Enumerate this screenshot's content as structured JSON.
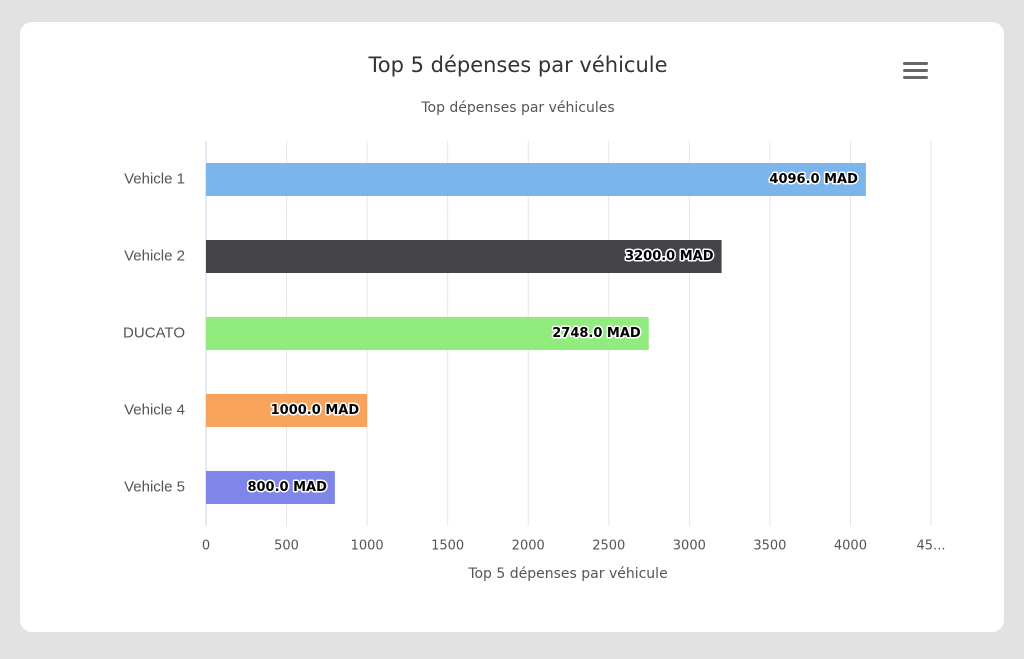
{
  "chart_data": {
    "type": "bar",
    "orientation": "horizontal",
    "title": "Top 5 dépenses par véhicule",
    "subtitle": "Top dépenses par véhicules",
    "x_label": "Top 5 dépenses par véhicule",
    "categories": [
      "Vehicle 1",
      "Vehicle 2",
      "DUCATO",
      "Vehicle 4",
      "Vehicle 5"
    ],
    "values": [
      4096,
      3200,
      2748,
      1000,
      800
    ],
    "value_labels": [
      "4096.0 MAD",
      "3200.0 MAD",
      "2748.0 MAD",
      "1000.0 MAD",
      "800.0 MAD"
    ],
    "colors": [
      "#7cb5ec",
      "#434348",
      "#90ed7d",
      "#f7a35c",
      "#8085e9"
    ],
    "xlim": [
      0,
      4500
    ],
    "xticks": [
      0,
      500,
      1000,
      1500,
      2000,
      2500,
      3000,
      3500,
      4000,
      {
        "value": 4500,
        "label": "45..."
      }
    ],
    "grid": true
  }
}
